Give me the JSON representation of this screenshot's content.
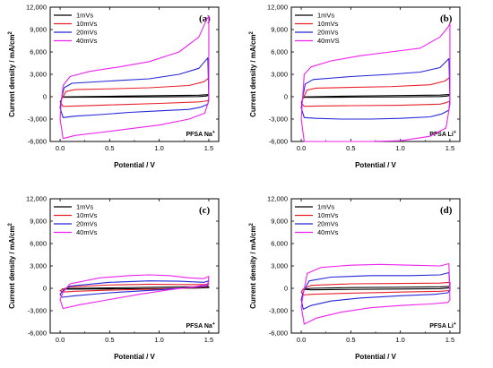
{
  "colors": {
    "1mVs": "#000000",
    "10mVs": "#e8202a",
    "20mVs": "#2426d6",
    "40mVs": "#ee22ee"
  },
  "chart_data": [
    {
      "type": "line",
      "panel": "(a)",
      "sample_label": "PFSA Na+",
      "xlabel": "Potential / V",
      "ylabel": "Current density / mA/cm2",
      "xlim": [
        -0.1,
        1.6
      ],
      "ylim": [
        -6000,
        12000
      ],
      "xticks": [
        "0.0",
        "0.5",
        "1.0",
        "1.5"
      ],
      "yticks": [
        "-6,000",
        "-3,000",
        "0",
        "3,000",
        "6,000",
        "9,000",
        "12,000"
      ],
      "series": [
        {
          "name": "1mVs",
          "x": [
            0.02,
            0.03,
            0.1,
            0.5,
            1.0,
            1.4,
            1.47,
            1.5,
            1.5,
            1.47,
            1.4,
            1.0,
            0.5,
            0.1,
            0.03,
            0.02
          ],
          "y": [
            -50,
            -20,
            0,
            60,
            140,
            200,
            260,
            280,
            180,
            80,
            20,
            -20,
            -50,
            -70,
            -70,
            -50
          ]
        },
        {
          "name": "10mVs",
          "x": [
            0.0,
            0.02,
            0.06,
            0.15,
            0.5,
            0.9,
            1.3,
            1.45,
            1.5,
            1.5,
            1.46,
            1.4,
            1.0,
            0.5,
            0.15,
            0.03,
            0.0
          ],
          "y": [
            -700,
            -200,
            700,
            950,
            1050,
            1200,
            1500,
            2000,
            2500,
            -500,
            -600,
            -700,
            -900,
            -1100,
            -1250,
            -1300,
            -700
          ]
        },
        {
          "name": "20mVs",
          "x": [
            0.0,
            0.01,
            0.04,
            0.12,
            0.5,
            0.9,
            1.2,
            1.4,
            1.49,
            1.5,
            1.49,
            1.42,
            1.3,
            1.0,
            0.7,
            0.4,
            0.15,
            0.03,
            0.0
          ],
          "y": [
            -1500,
            -500,
            1200,
            1800,
            2100,
            2400,
            3000,
            3800,
            5200,
            -200,
            -1000,
            -1400,
            -1700,
            -1900,
            -2100,
            -2400,
            -2600,
            -2800,
            -1500
          ]
        },
        {
          "name": "40mVs",
          "x": [
            0.0,
            0.01,
            0.03,
            0.1,
            0.3,
            0.6,
            0.9,
            1.2,
            1.4,
            1.48,
            1.5,
            1.5,
            1.46,
            1.3,
            1.0,
            0.7,
            0.4,
            0.15,
            0.03,
            0.0
          ],
          "y": [
            -3000,
            -1000,
            1500,
            2700,
            3400,
            4000,
            4700,
            6000,
            8000,
            10400,
            10800,
            -500,
            -2200,
            -3000,
            -3800,
            -4300,
            -4800,
            -5200,
            -5600,
            -3000
          ]
        }
      ]
    },
    {
      "type": "line",
      "panel": "(b)",
      "sample_label": "PFSA Li+",
      "xlabel": "Potential / V",
      "ylabel": "Current density / mA/cm2",
      "xlim": [
        -0.1,
        1.6
      ],
      "ylim": [
        -6000,
        12000
      ],
      "xticks": [
        "0.0",
        "0.5",
        "1.0",
        "1.5"
      ],
      "yticks": [
        "-6,000",
        "-3,000",
        "0",
        "3,000",
        "6,000",
        "9,000",
        "12,000"
      ],
      "series": [
        {
          "name": "1mVs",
          "x": [
            0.02,
            0.03,
            0.1,
            0.5,
            1.0,
            1.4,
            1.47,
            1.5,
            1.5,
            1.47,
            1.4,
            1.0,
            0.5,
            0.1,
            0.03,
            0.02
          ],
          "y": [
            -60,
            -20,
            0,
            80,
            160,
            220,
            280,
            300,
            180,
            80,
            20,
            -30,
            -60,
            -80,
            -80,
            -60
          ]
        },
        {
          "name": "10mVs",
          "x": [
            0.0,
            0.02,
            0.06,
            0.15,
            0.5,
            0.9,
            1.3,
            1.45,
            1.5,
            1.5,
            1.46,
            1.4,
            1.0,
            0.5,
            0.15,
            0.03,
            0.0
          ],
          "y": [
            -800,
            -200,
            900,
            1150,
            1250,
            1350,
            1600,
            2100,
            2600,
            -600,
            -800,
            -1000,
            -1150,
            -1200,
            -1250,
            -1300,
            -800
          ]
        },
        {
          "name": "20mVs",
          "x": [
            0.0,
            0.01,
            0.04,
            0.12,
            0.5,
            0.9,
            1.2,
            1.4,
            1.49,
            1.5,
            1.49,
            1.42,
            1.3,
            1.0,
            0.7,
            0.4,
            0.15,
            0.03,
            0.0
          ],
          "y": [
            -1500,
            -500,
            1700,
            2300,
            2700,
            3000,
            3300,
            3900,
            5100,
            -300,
            -1800,
            -2300,
            -2700,
            -2900,
            -3000,
            -3000,
            -2900,
            -2800,
            -1500
          ]
        },
        {
          "name": "40mVS",
          "x": [
            0.0,
            0.01,
            0.03,
            0.1,
            0.3,
            0.6,
            0.9,
            1.2,
            1.4,
            1.48,
            1.5,
            1.5,
            1.46,
            1.3,
            1.0,
            0.7,
            0.4,
            0.15,
            0.03,
            0.0
          ],
          "y": [
            -3000,
            -1000,
            3000,
            4000,
            4800,
            5500,
            6000,
            6500,
            8000,
            9300,
            9800,
            -1000,
            -4200,
            -5300,
            -5900,
            -6000,
            -6000,
            -6000,
            -6000,
            -3000
          ]
        }
      ]
    },
    {
      "type": "line",
      "panel": "(c)",
      "sample_label": "PFSA Na+",
      "xlabel": "Potential / V",
      "ylabel": "Current density / mA/cm2",
      "xlim": [
        -0.1,
        1.6
      ],
      "ylim": [
        -6000,
        12000
      ],
      "xticks": [
        "0.0",
        "0.5",
        "1.0",
        "1.5"
      ],
      "yticks": [
        "-6,000",
        "-3,000",
        "0",
        "3,000",
        "6,000",
        "9,000",
        "12,000"
      ],
      "series": [
        {
          "name": "1mVs",
          "x": [
            0.02,
            0.1,
            0.5,
            1.0,
            1.4,
            1.5,
            1.5,
            1.4,
            1.0,
            0.5,
            0.1,
            0.02
          ],
          "y": [
            -100,
            -20,
            50,
            150,
            200,
            220,
            100,
            30,
            -30,
            -80,
            -120,
            -100
          ]
        },
        {
          "name": "10mVs",
          "x": [
            0.0,
            0.03,
            0.1,
            0.5,
            0.9,
            1.2,
            1.45,
            1.5,
            1.48,
            1.3,
            1.0,
            0.5,
            0.15,
            0.02,
            0.0
          ],
          "y": [
            -300,
            -100,
            200,
            450,
            550,
            500,
            500,
            600,
            200,
            50,
            -100,
            -250,
            -400,
            -500,
            -300
          ]
        },
        {
          "name": "20mVs",
          "x": [
            0.0,
            0.03,
            0.1,
            0.5,
            0.9,
            1.2,
            1.45,
            1.5,
            1.48,
            1.3,
            1.0,
            0.5,
            0.15,
            0.02,
            0.0
          ],
          "y": [
            -800,
            -300,
            300,
            800,
            1000,
            950,
            800,
            1000,
            300,
            100,
            -200,
            -600,
            -1000,
            -1200,
            -800
          ]
        },
        {
          "name": "40mVs",
          "x": [
            0.0,
            0.03,
            0.1,
            0.4,
            0.7,
            0.9,
            1.1,
            1.3,
            1.45,
            1.5,
            1.49,
            1.35,
            1.1,
            0.8,
            0.5,
            0.2,
            0.03,
            0.0
          ],
          "y": [
            -1500,
            -500,
            600,
            1400,
            1700,
            1800,
            1700,
            1400,
            1300,
            1600,
            500,
            200,
            -200,
            -800,
            -1500,
            -2200,
            -2700,
            -1500
          ]
        }
      ]
    },
    {
      "type": "line",
      "panel": "(d)",
      "sample_label": "PFSA Li+",
      "xlabel": "Potential / V",
      "ylabel": "Current density / mA/cm2",
      "xlim": [
        -0.1,
        1.6
      ],
      "ylim": [
        -6000,
        12000
      ],
      "xticks": [
        "0.0",
        "0.5",
        "1.0",
        "1.5"
      ],
      "yticks": [
        "-6,000",
        "-3,000",
        "0",
        "3,000",
        "6,000",
        "9,000",
        "12,000"
      ],
      "series": [
        {
          "name": "1mVs",
          "x": [
            0.02,
            0.1,
            0.5,
            1.0,
            1.4,
            1.5,
            1.5,
            1.4,
            1.0,
            0.5,
            0.1,
            0.02
          ],
          "y": [
            -150,
            0,
            100,
            150,
            200,
            250,
            50,
            -50,
            -100,
            -150,
            -200,
            -150
          ]
        },
        {
          "name": "10mVs",
          "x": [
            0.0,
            0.02,
            0.1,
            0.5,
            1.0,
            1.4,
            1.5,
            1.5,
            1.4,
            1.0,
            0.5,
            0.1,
            0.02,
            0.0
          ],
          "y": [
            -500,
            -100,
            400,
            600,
            650,
            700,
            800,
            -300,
            -400,
            -500,
            -650,
            -800,
            -900,
            -500
          ]
        },
        {
          "name": "20mVs",
          "x": [
            0.0,
            0.02,
            0.08,
            0.3,
            0.7,
            1.1,
            1.4,
            1.49,
            1.5,
            1.48,
            1.35,
            1.0,
            0.6,
            0.3,
            0.1,
            0.02,
            0.0
          ],
          "y": [
            -1500,
            -500,
            1000,
            1500,
            1700,
            1700,
            1800,
            2100,
            -200,
            -600,
            -800,
            -1000,
            -1300,
            -1700,
            -2300,
            -2800,
            -1500
          ]
        },
        {
          "name": "40mVs",
          "x": [
            0.0,
            0.02,
            0.06,
            0.2,
            0.5,
            0.8,
            1.1,
            1.4,
            1.49,
            1.5,
            1.48,
            1.3,
            1.0,
            0.7,
            0.4,
            0.15,
            0.03,
            0.0
          ],
          "y": [
            -2500,
            -800,
            2000,
            2800,
            3100,
            3200,
            3100,
            3000,
            3300,
            -1500,
            -1900,
            -2100,
            -2300,
            -2600,
            -3200,
            -4000,
            -4800,
            -2500
          ]
        }
      ]
    }
  ]
}
